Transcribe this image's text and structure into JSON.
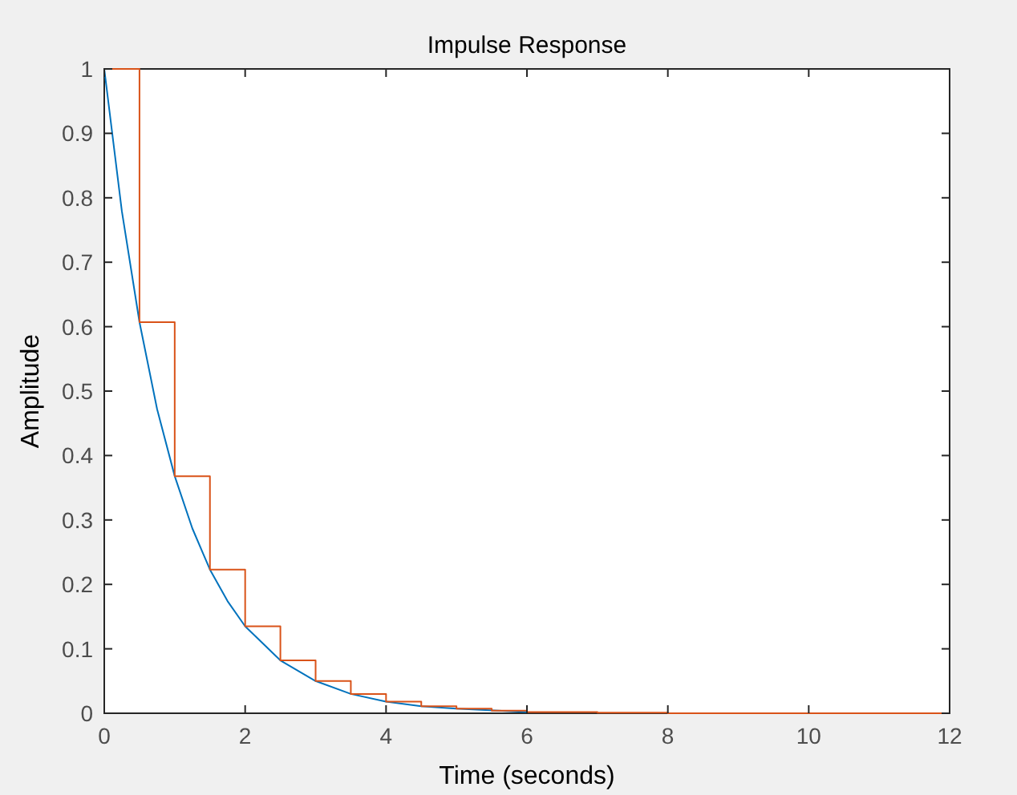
{
  "chart_data": {
    "type": "line",
    "title": "Impulse Response",
    "xlabel": "Time (seconds)",
    "ylabel": "Amplitude",
    "xlim": [
      0,
      12
    ],
    "ylim": [
      0,
      1
    ],
    "xticks": [
      0,
      2,
      4,
      6,
      8,
      10,
      12
    ],
    "yticks": [
      0,
      0.1,
      0.2,
      0.3,
      0.4,
      0.5,
      0.6,
      0.7,
      0.8,
      0.9,
      1
    ],
    "grid": false,
    "series": [
      {
        "color": "#0072bd",
        "x": [
          0,
          0.25,
          0.5,
          0.75,
          1,
          1.25,
          1.5,
          1.75,
          2,
          2.5,
          3,
          3.5,
          4,
          4.5,
          5,
          6
        ],
        "values": [
          1,
          0.779,
          0.607,
          0.472,
          0.368,
          0.287,
          0.223,
          0.174,
          0.135,
          0.082,
          0.05,
          0.03,
          0.018,
          0.011,
          0.007,
          0.002
        ]
      },
      {
        "type": "step",
        "color": "#d95319",
        "x": [
          0,
          0.5,
          1,
          1.5,
          2,
          2.5,
          3,
          3.5,
          4,
          4.5,
          5,
          5.5,
          6,
          6.5,
          7,
          7.5,
          8,
          8.5,
          9,
          9.5,
          10,
          10.5,
          11,
          11.5,
          12
        ],
        "values": [
          1,
          0.607,
          0.368,
          0.223,
          0.135,
          0.082,
          0.05,
          0.03,
          0.018,
          0.011,
          0.007,
          0.004,
          0.002,
          0.002,
          0.001,
          0.001,
          0,
          0,
          0,
          0,
          0,
          0,
          0,
          0,
          0
        ]
      }
    ]
  }
}
